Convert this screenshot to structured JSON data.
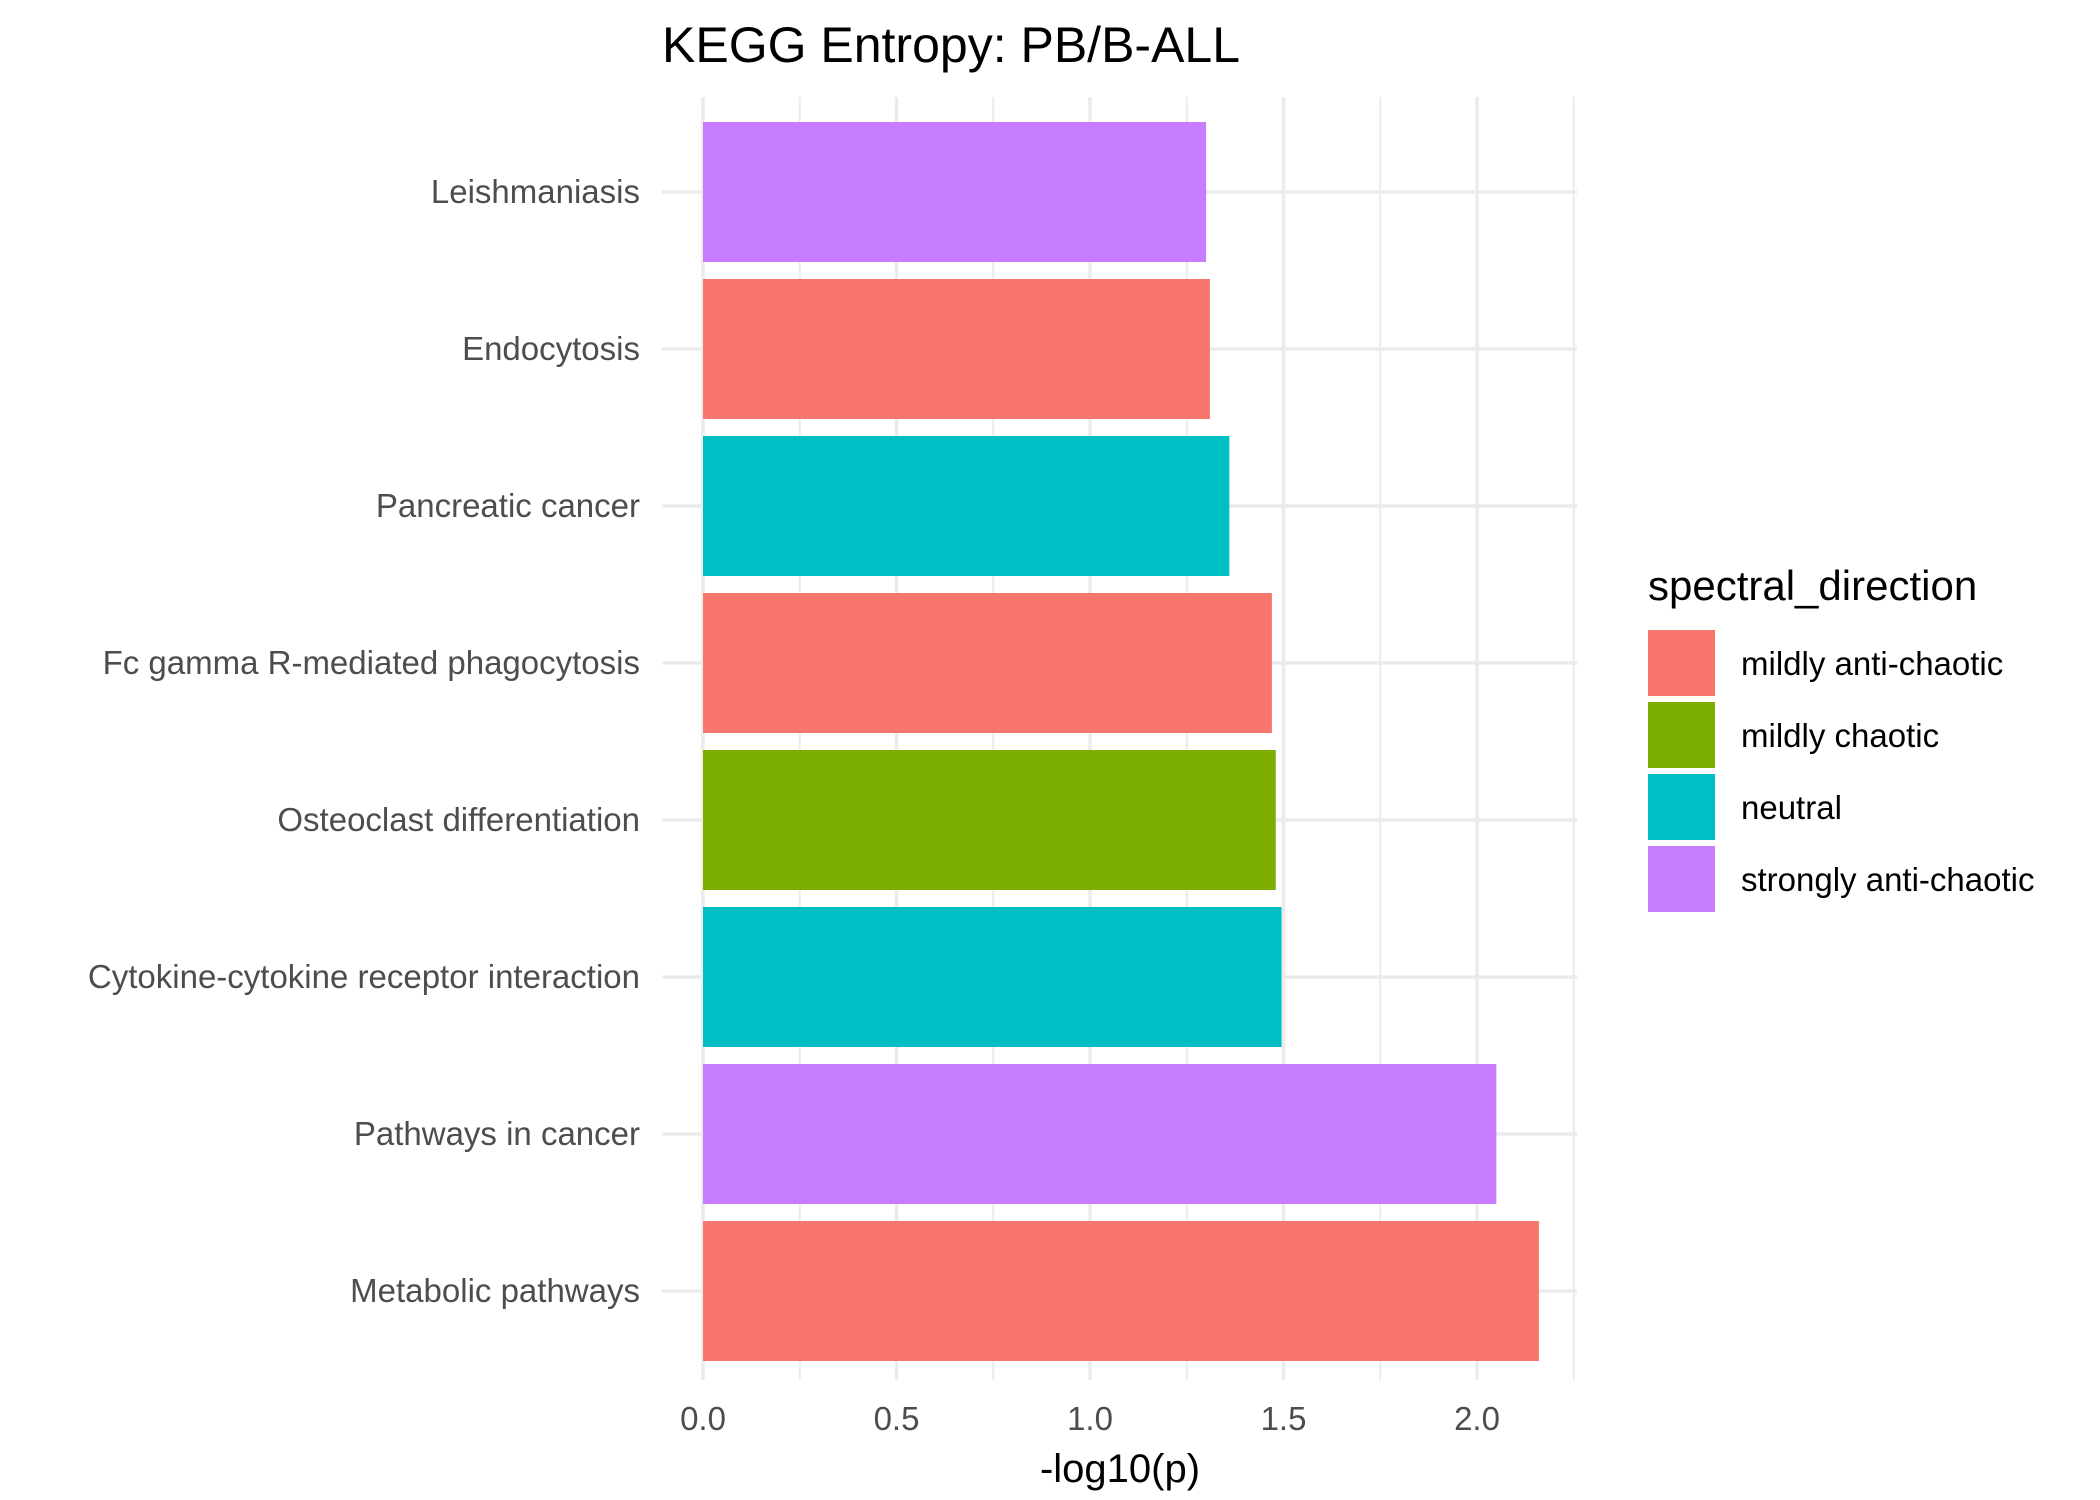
{
  "chart_data": {
    "type": "bar",
    "orientation": "horizontal",
    "title": "KEGG Entropy: PB/B-ALL",
    "xlabel": "-log10(p)",
    "ylabel": "",
    "xlim": [
      0,
      2.25
    ],
    "x_ticks": [
      0.0,
      0.5,
      1.0,
      1.5,
      2.0
    ],
    "x_tick_labels": [
      "0.0",
      "0.5",
      "1.0",
      "1.5",
      "2.0"
    ],
    "grid": true,
    "categories": [
      "Leishmaniasis",
      "Endocytosis",
      "Pancreatic cancer",
      "Fc gamma R-mediated phagocytosis",
      "Osteoclast differentiation",
      "Cytokine-cytokine receptor interaction",
      "Pathways in cancer",
      "Metabolic pathways"
    ],
    "values": [
      1.3,
      1.31,
      1.36,
      1.47,
      1.48,
      1.495,
      2.05,
      2.16
    ],
    "groups": [
      "strongly anti-chaotic",
      "mildly anti-chaotic",
      "neutral",
      "mildly anti-chaotic",
      "mildly chaotic",
      "neutral",
      "strongly anti-chaotic",
      "mildly anti-chaotic"
    ],
    "legend": {
      "title": "spectral_direction",
      "position": "right",
      "entries": [
        {
          "label": "mildly anti-chaotic",
          "color": "#F8766D"
        },
        {
          "label": "mildly chaotic",
          "color": "#7CAE00"
        },
        {
          "label": "neutral",
          "color": "#00BFC4"
        },
        {
          "label": "strongly anti-chaotic",
          "color": "#C77CFF"
        }
      ]
    }
  }
}
